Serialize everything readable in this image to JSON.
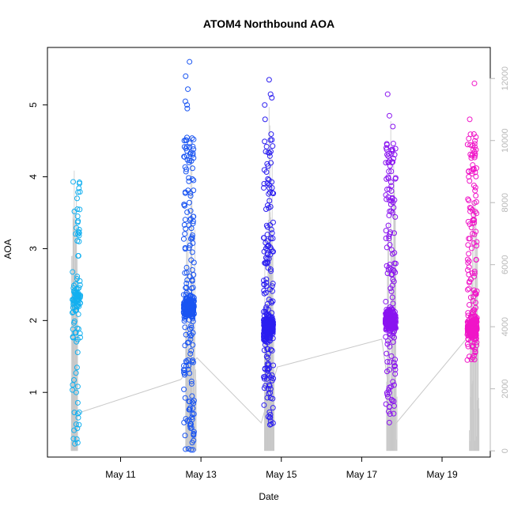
{
  "chart_data": {
    "type": "scatter",
    "title": "ATOM4 Northbound AOA",
    "xlabel": "Date",
    "ylabel": "AOA",
    "x_ticks": [
      "May 11",
      "May 13",
      "May 15",
      "May 17",
      "May 19"
    ],
    "xlim_days": [
      9.18,
      20.2
    ],
    "ylim": [
      0.1,
      5.8
    ],
    "y_ticks": [
      1,
      2,
      3,
      4,
      5
    ],
    "y2_ticks": [
      0,
      2000,
      4000,
      6000,
      8000,
      10000,
      12000
    ],
    "y2lim": [
      -200,
      13000
    ],
    "grid": false,
    "colors": {
      "series_1": "#13b0f0",
      "series_2": "#1a55f2",
      "series_3": "#2b1ef0",
      "series_4": "#8a14f0",
      "series_5": "#f015c8",
      "secondary_line": "#c9c9c9"
    },
    "groups": [
      {
        "center": 9.9,
        "half_width": 0.1,
        "y_min": 0.28,
        "y_max": 3.95,
        "dense_center": 2.3,
        "count": 110,
        "outliers": [
          0.3,
          0.35,
          0.5,
          0.55,
          0.72,
          1.0,
          1.27,
          2.9,
          3.2,
          3.45,
          3.7,
          3.93
        ]
      },
      {
        "center": 12.7,
        "half_width": 0.13,
        "y_min": 0.2,
        "y_max": 5.6,
        "dense_center": 2.2,
        "count": 330,
        "outliers": [
          0.2,
          0.4,
          5.0,
          5.05,
          5.22,
          5.4,
          5.6,
          4.95
        ]
      },
      {
        "center": 14.68,
        "half_width": 0.12,
        "y_min": 0.55,
        "y_max": 5.35,
        "dense_center": 1.9,
        "count": 360,
        "outliers": [
          0.55,
          5.0,
          5.1,
          5.15,
          5.35,
          4.8
        ]
      },
      {
        "center": 17.72,
        "half_width": 0.13,
        "y_min": 0.58,
        "y_max": 5.15,
        "dense_center": 2.0,
        "count": 300,
        "outliers": [
          0.58,
          0.7,
          4.7,
          4.85,
          5.15
        ]
      },
      {
        "center": 19.75,
        "half_width": 0.12,
        "y_min": 1.45,
        "y_max": 5.32,
        "dense_center": 1.9,
        "count": 280,
        "outliers": [
          1.5,
          1.6,
          4.0,
          4.5,
          4.8,
          5.3
        ]
      }
    ],
    "secondary_series": {
      "axis": "right",
      "points": [
        [
          9.9,
          1200
        ],
        [
          12.5,
          2300
        ],
        [
          12.9,
          3000
        ],
        [
          14.5,
          900
        ],
        [
          14.9,
          2700
        ],
        [
          17.5,
          3600
        ],
        [
          17.8,
          800
        ],
        [
          19.6,
          3600
        ]
      ],
      "spike_clusters": [
        {
          "center": 9.85,
          "half_width": 0.08,
          "max": 11000
        },
        {
          "center": 12.75,
          "half_width": 0.13,
          "max": 10800
        },
        {
          "center": 14.7,
          "half_width": 0.12,
          "max": 12200
        },
        {
          "center": 17.75,
          "half_width": 0.13,
          "max": 10900
        },
        {
          "center": 19.8,
          "half_width": 0.12,
          "max": 9000
        }
      ]
    }
  }
}
